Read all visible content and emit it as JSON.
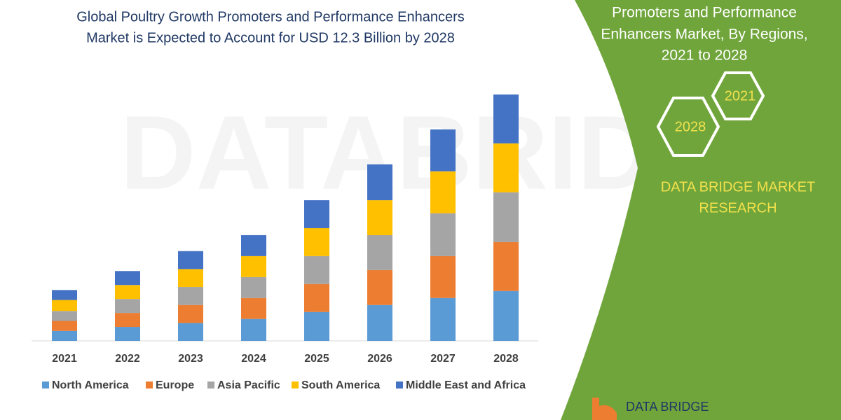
{
  "chart_data": {
    "type": "bar",
    "stacked": true,
    "title": [
      "Global Poultry Growth Promoters and Performance Enhancers",
      "Market is Expected to Account for USD 12.3 Billion by 2028"
    ],
    "categories": [
      "2021",
      "2022",
      "2023",
      "2024",
      "2025",
      "2026",
      "2027",
      "2028"
    ],
    "series": [
      {
        "name": "North America",
        "color": "#5b9bd5",
        "values": [
          0.5,
          0.7,
          0.9,
          1.1,
          1.45,
          1.8,
          2.15,
          2.5
        ]
      },
      {
        "name": "Europe",
        "color": "#ed7d31",
        "values": [
          0.5,
          0.7,
          0.9,
          1.05,
          1.4,
          1.75,
          2.1,
          2.45
        ]
      },
      {
        "name": "Asia Pacific",
        "color": "#a5a5a5",
        "values": [
          0.5,
          0.7,
          0.9,
          1.05,
          1.4,
          1.75,
          2.15,
          2.5
        ]
      },
      {
        "name": "South America",
        "color": "#ffc000",
        "values": [
          0.55,
          0.7,
          0.9,
          1.05,
          1.4,
          1.75,
          2.1,
          2.45
        ]
      },
      {
        "name": "Middle East and Africa",
        "color": "#4472c4",
        "values": [
          0.5,
          0.7,
          0.9,
          1.05,
          1.4,
          1.8,
          2.1,
          2.45
        ]
      }
    ]
  },
  "watermark": "DATABRIDGE",
  "side_panel": {
    "heading": [
      "Promoters and Performance",
      "Enhancers Market, By Regions,",
      "2021 to 2028"
    ],
    "hexagons": [
      "2021",
      "2028"
    ],
    "brand": [
      "DATA BRIDGE MARKET",
      "RESEARCH"
    ],
    "logo": "DATA BRIDGE"
  }
}
